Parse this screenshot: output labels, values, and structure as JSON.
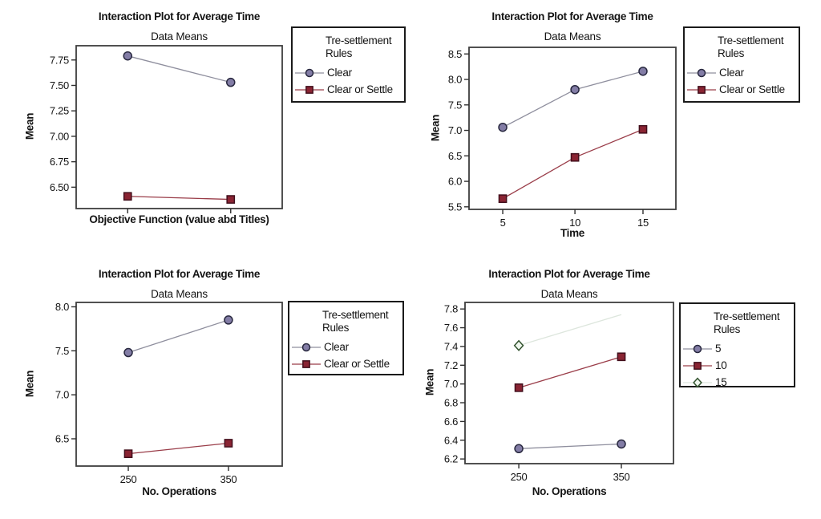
{
  "style": {
    "background": "#ffffff",
    "plot_border": "#3e3e3e",
    "tick_color": "#2f2f2f",
    "text_color": "#141414",
    "legend_border": "#1a1a1a"
  },
  "chart_data": [
    {
      "type": "line",
      "title": "Interaction Plot for Average Time",
      "subtitle": "Data Means",
      "ylabel": "Mean",
      "xlabel": "Objective Function (value abd Titles)",
      "legend_title": "Tre-settlement Rules",
      "legend_position": "right",
      "grid": false,
      "x_tick_labels": [
        "",
        ""
      ],
      "yticks": [
        6.5,
        6.75,
        7.0,
        7.25,
        7.5,
        7.75
      ],
      "ytick_labels": [
        "6.50",
        "6.75",
        "7.00",
        "7.25",
        "7.50",
        "7.75"
      ],
      "ylim": [
        6.29,
        7.89
      ],
      "series": [
        {
          "name": "Clear",
          "marker": "circle",
          "values": [
            7.79,
            7.53
          ],
          "line_color": "#8f8f9e",
          "marker_fill": "#837da6",
          "marker_stroke": "#28283f"
        },
        {
          "name": "Clear or Settle",
          "marker": "square",
          "values": [
            6.41,
            6.38
          ],
          "line_color": "#9a3d49",
          "marker_fill": "#8a2433",
          "marker_stroke": "#420f1c"
        }
      ]
    },
    {
      "type": "line",
      "title": "Interaction Plot for Average Time",
      "subtitle": "Data Means",
      "ylabel": "Mean",
      "xlabel": "Time",
      "legend_title": "Tre-settlement Rules",
      "legend_position": "right",
      "grid": false,
      "x_tick_labels": [
        "5",
        "10",
        "15"
      ],
      "yticks": [
        5.5,
        6.0,
        6.5,
        7.0,
        7.5,
        8.0,
        8.5
      ],
      "ytick_labels": [
        "5.5",
        "6.0",
        "6.5",
        "7.0",
        "7.5",
        "8.0",
        "8.5"
      ],
      "ylim": [
        5.45,
        8.63
      ],
      "series": [
        {
          "name": "Clear",
          "marker": "circle",
          "values": [
            7.06,
            7.8,
            8.16
          ],
          "line_color": "#8f8f9e",
          "marker_fill": "#837da6",
          "marker_stroke": "#28283f"
        },
        {
          "name": "Clear or Settle",
          "marker": "square",
          "values": [
            5.66,
            6.47,
            7.02
          ],
          "line_color": "#9a3d49",
          "marker_fill": "#8a2433",
          "marker_stroke": "#420f1c"
        }
      ]
    },
    {
      "type": "line",
      "title": "Interaction Plot for Average Time",
      "subtitle": "Data Means",
      "ylabel": "Mean",
      "xlabel": "No. Operations",
      "legend_title": "Tre-settlement Rules",
      "legend_position": "right",
      "grid": false,
      "x_tick_labels": [
        "250",
        "350"
      ],
      "yticks": [
        6.5,
        7.0,
        7.5,
        8.0
      ],
      "ytick_labels": [
        "6.5",
        "7.0",
        "7.5",
        "8.0"
      ],
      "ylim": [
        6.19,
        8.05
      ],
      "series": [
        {
          "name": "Clear",
          "marker": "circle",
          "values": [
            7.48,
            7.85
          ],
          "line_color": "#8f8f9e",
          "marker_fill": "#837da6",
          "marker_stroke": "#28283f"
        },
        {
          "name": "Clear or Settle",
          "marker": "square",
          "values": [
            6.33,
            6.45
          ],
          "line_color": "#9a3d49",
          "marker_fill": "#8a2433",
          "marker_stroke": "#420f1c"
        }
      ]
    },
    {
      "type": "line",
      "title": "Interaction Plot for Average Time",
      "subtitle": "Data Means",
      "ylabel": "Mean",
      "xlabel": "No. Operations",
      "legend_title": "Tre-settlement Rules",
      "legend_position": "right",
      "grid": false,
      "x_tick_labels": [
        "250",
        "350"
      ],
      "yticks": [
        6.2,
        6.4,
        6.6,
        6.8,
        7.0,
        7.2,
        7.4,
        7.6,
        7.8
      ],
      "ytick_labels": [
        "6.2",
        "6.4",
        "6.6",
        "6.8",
        "7.0",
        "7.2",
        "7.4",
        "7.6",
        "7.8"
      ],
      "ylim": [
        6.15,
        7.87
      ],
      "series": [
        {
          "name": "5",
          "marker": "circle",
          "values": [
            6.31,
            6.36
          ],
          "line_color": "#8f8f9e",
          "marker_fill": "#837da6",
          "marker_stroke": "#28283f"
        },
        {
          "name": "10",
          "marker": "square",
          "values": [
            6.96,
            7.29
          ],
          "line_color": "#9a3d49",
          "marker_fill": "#8a2433",
          "marker_stroke": "#420f1c"
        },
        {
          "name": "15",
          "marker": "diamond",
          "values": [
            7.41,
            7.74
          ],
          "markers": [
            true,
            false
          ],
          "line_color": "#dde6dd",
          "marker_fill": "#eff7ee",
          "marker_stroke": "#33532f"
        }
      ]
    }
  ]
}
